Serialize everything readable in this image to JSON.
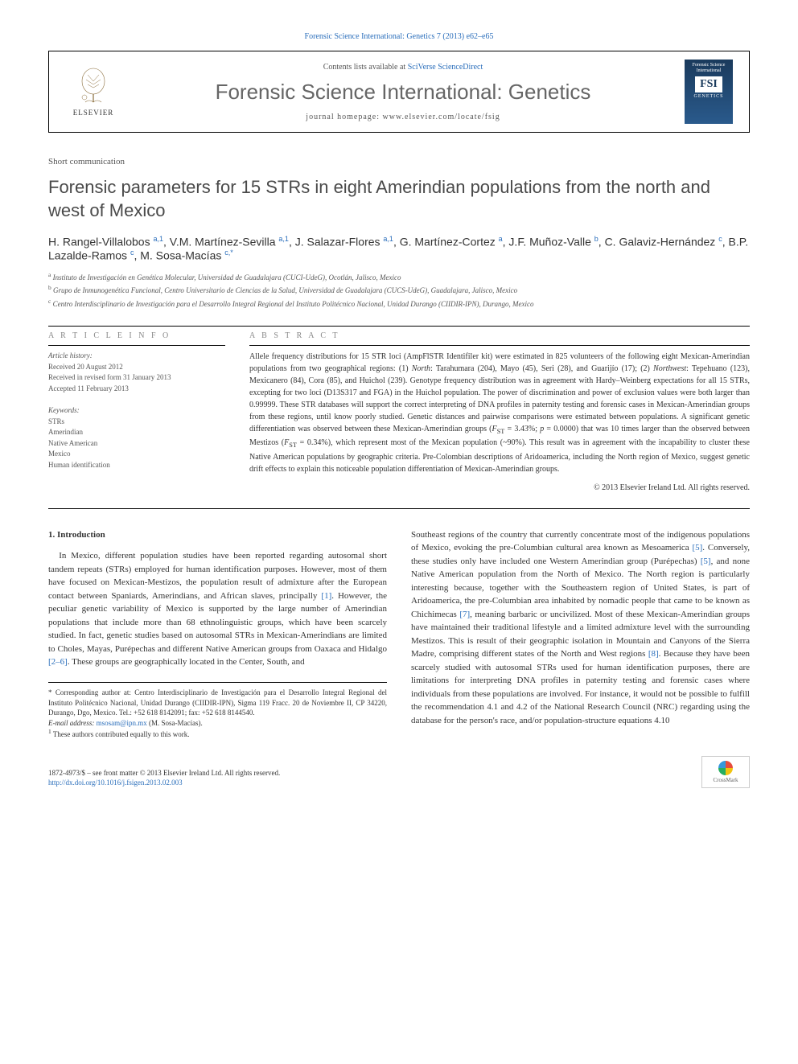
{
  "citation": {
    "text": "Forensic Science International: Genetics 7 (2013) e62–e65",
    "link_text": "Forensic Science International: Genetics 7 (2013) e62–e65"
  },
  "header": {
    "elsevier": "ELSEVIER",
    "contents_prefix": "Contents lists available at ",
    "contents_link": "SciVerse ScienceDirect",
    "journal": "Forensic Science International: Genetics",
    "homepage": "journal homepage: www.elsevier.com/locate/fsig",
    "cover_top": "Forensic Science International",
    "cover_fsi": "FSI",
    "cover_gen": "GENETICS"
  },
  "article_type": "Short communication",
  "title": "Forensic parameters for 15 STRs in eight Amerindian populations from the north and west of Mexico",
  "authors_html": "H. Rangel-Villalobos <sup>a,1</sup>, V.M. Martínez-Sevilla <sup>a,1</sup>, J. Salazar-Flores <sup>a,1</sup>, G. Martínez-Cortez <sup>a</sup>, J.F. Muñoz-Valle <sup>b</sup>, C. Galaviz-Hernández <sup>c</sup>, B.P. Lazalde-Ramos <sup>c</sup>, M. Sosa-Macías <sup>c,*</sup>",
  "affiliations": [
    "a Instituto de Investigación en Genética Molecular, Universidad de Guadalajara (CUCI-UdeG), Ocotlán, Jalisco, Mexico",
    "b Grupo de Inmunogenética Funcional, Centro Universitario de Ciencias de la Salud, Universidad de Guadalajara (CUCS-UdeG), Guadalajara, Jalisco, Mexico",
    "c Centro Interdisciplinario de Investigación para el Desarrollo Integral Regional del Instituto Politécnico Nacional, Unidad Durango (CIIDIR-IPN), Durango, Mexico"
  ],
  "info": {
    "article_info_head": "A R T I C L E   I N F O",
    "abstract_head": "A B S T R A C T",
    "history_head": "Article history:",
    "received": "Received 20 August 2012",
    "revised": "Received in revised form 31 January 2013",
    "accepted": "Accepted 11 February 2013",
    "keywords_head": "Keywords:",
    "keywords": [
      "STRs",
      "Amerindian",
      "Native American",
      "Mexico",
      "Human identification"
    ]
  },
  "abstract": "Allele frequency distributions for 15 STR loci (AmpFlSTR Identifiler kit) were estimated in 825 volunteers of the following eight Mexican-Amerindian populations from two geographical regions: (1) North: Tarahumara (204), Mayo (45), Seri (28), and Guarijío (17); (2) Northwest: Tepehuano (123), Mexicanero (84), Cora (85), and Huichol (239). Genotype frequency distribution was in agreement with Hardy–Weinberg expectations for all 15 STRs, excepting for two loci (D13S317 and FGA) in the Huichol population. The power of discrimination and power of exclusion values were both larger than 0.99999. These STR databases will support the correct interpreting of DNA profiles in paternity testing and forensic cases in Mexican-Amerindian groups from these regions, until know poorly studied. Genetic distances and pairwise comparisons were estimated between populations. A significant genetic differentiation was observed between these Mexican-Amerindian groups (F_ST = 3.43%; p = 0.0000) that was 10 times larger than the observed between Mestizos (F_ST = 0.34%), which represent most of the Mexican population (~90%). This result was in agreement with the incapability to cluster these Native American populations by geographic criteria. Pre-Colombian descriptions of Aridoamerica, including the North region of Mexico, suggest genetic drift effects to explain this noticeable population differentiation of Mexican-Amerindian groups.",
  "copyright": "© 2013 Elsevier Ireland Ltd. All rights reserved.",
  "section1_head": "1. Introduction",
  "col1": "In Mexico, different population studies have been reported regarding autosomal short tandem repeats (STRs) employed for human identification purposes. However, most of them have focused on Mexican-Mestizos, the population result of admixture after the European contact between Spaniards, Amerindians, and African slaves, principally [1]. However, the peculiar genetic variability of Mexico is supported by the large number of Amerindian populations that include more than 68 ethnolinguistic groups, which have been scarcely studied. In fact, genetic studies based on autosomal STRs in Mexican-Amerindians are limited to Choles, Mayas, Purépechas and different Native American groups from Oaxaca and Hidalgo [2–6]. These groups are geographically located in the Center, South, and",
  "col2": "Southeast regions of the country that currently concentrate most of the indigenous populations of Mexico, evoking the pre-Columbian cultural area known as Mesoamerica [5]. Conversely, these studies only have included one Western Amerindian group (Purépechas) [5], and none Native American population from the North of Mexico. The North region is particularly interesting because, together with the Southeastern region of United States, is part of Aridoamerica, the pre-Columbian area inhabited by nomadic people that came to be known as Chichimecas [7], meaning barbaric or uncivilized. Most of these Mexican-Amerindian groups have maintained their traditional lifestyle and a limited admixture level with the surrounding Mestizos. This is result of their geographic isolation in Mountain and Canyons of the Sierra Madre, comprising different states of the North and West regions [8]. Because they have been scarcely studied with autosomal STRs used for human identification purposes, there are limitations for interpreting DNA profiles in paternity testing and forensic cases where individuals from these populations are involved. For instance, it would not be possible to fulfill the recommendation 4.1 and 4.2 of the National Research Council (NRC) regarding using the database for the person's race, and/or population-structure equations 4.10",
  "footnotes": {
    "corr": "* Corresponding author at: Centro Interdisciplinario de Investigación para el Desarrollo Integral Regional del Instituto Politécnico Nacional, Unidad Durango (CIIDIR-IPN), Sigma 119 Fracc. 20 de Noviembre II, CP 34220, Durango, Dgo, Mexico. Tel.: +52 618 8142091; fax: +52 618 8144540.",
    "email_label": "E-mail address: ",
    "email": "msosam@ipn.mx",
    "email_suffix": " (M. Sosa-Macías).",
    "contrib": "1 These authors contributed equally to this work."
  },
  "footer": {
    "issn": "1872-4973/$ – see front matter © 2013 Elsevier Ireland Ltd. All rights reserved.",
    "doi": "http://dx.doi.org/10.1016/j.fsigen.2013.02.003",
    "crossmark": "CrossMark"
  }
}
